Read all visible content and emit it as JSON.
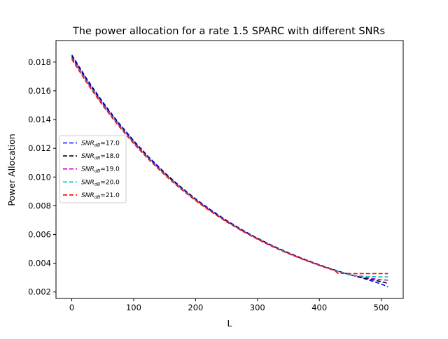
{
  "chart_data": {
    "type": "line",
    "title": "The power allocation for a rate 1.5 SPARC with different SNRs",
    "xlabel": "L",
    "ylabel": "Power Allocation",
    "xlim": [
      -25.5,
      535.5
    ],
    "ylim": [
      0.00155,
      0.0195
    ],
    "x_ticks": [
      0,
      100,
      200,
      300,
      400,
      500
    ],
    "x_tick_labels": [
      "0",
      "100",
      "200",
      "300",
      "400",
      "500"
    ],
    "y_ticks": [
      0.002,
      0.004,
      0.006,
      0.008,
      0.01,
      0.012,
      0.014,
      0.016,
      0.018
    ],
    "y_tick_labels": [
      "0.002",
      "0.004",
      "0.006",
      "0.008",
      "0.010",
      "0.012",
      "0.014",
      "0.016",
      "0.018"
    ],
    "grid": false,
    "legend_position": "center-left",
    "line_style": "dashed",
    "x": [
      0,
      25,
      50,
      75,
      100,
      125,
      150,
      175,
      200,
      225,
      250,
      275,
      300,
      325,
      350,
      375,
      400,
      425,
      430,
      450,
      475,
      500,
      511
    ],
    "series": [
      {
        "name": "SNR_dB=17.0",
        "legend_prefix": "SNR",
        "legend_sub": "dB",
        "legend_value": "=17.0",
        "color": "#0000ff",
        "values": [
          0.0185,
          0.01678,
          0.01522,
          0.01381,
          0.01253,
          0.01136,
          0.01031,
          0.00935,
          0.00848,
          0.0077,
          0.00698,
          0.00633,
          0.00574,
          0.00521,
          0.00473,
          0.00429,
          0.00389,
          0.00353,
          0.00346,
          0.0032,
          0.0029,
          0.00256,
          0.00235
        ]
      },
      {
        "name": "SNR_dB=18.0",
        "legend_prefix": "SNR",
        "legend_sub": "dB",
        "legend_value": "=18.0",
        "color": "#000000",
        "values": [
          0.0184,
          0.01669,
          0.01514,
          0.01374,
          0.01246,
          0.0113,
          0.01025,
          0.0093,
          0.00844,
          0.00766,
          0.00695,
          0.0063,
          0.00572,
          0.00519,
          0.00471,
          0.00427,
          0.00388,
          0.00352,
          0.00345,
          0.0032,
          0.00295,
          0.00272,
          0.0026
        ]
      },
      {
        "name": "SNR_dB=19.0",
        "legend_prefix": "SNR",
        "legend_sub": "dB",
        "legend_value": "=19.0",
        "color": "#bf00bf",
        "values": [
          0.01832,
          0.01662,
          0.01508,
          0.01368,
          0.01241,
          0.01126,
          0.01021,
          0.00927,
          0.00841,
          0.00763,
          0.00692,
          0.00628,
          0.0057,
          0.00517,
          0.00469,
          0.00426,
          0.00386,
          0.00351,
          0.00344,
          0.00319,
          0.003,
          0.00285,
          0.00282
        ]
      },
      {
        "name": "SNR_dB=20.0",
        "legend_prefix": "SNR",
        "legend_sub": "dB",
        "legend_value": "=20.0",
        "color": "#00bfbf",
        "values": [
          0.01826,
          0.01656,
          0.01502,
          0.01363,
          0.01237,
          0.01122,
          0.01018,
          0.00924,
          0.00838,
          0.00761,
          0.0069,
          0.00626,
          0.00568,
          0.00516,
          0.00468,
          0.00425,
          0.00385,
          0.0035,
          0.00343,
          0.00318,
          0.00308,
          0.00305,
          0.00305
        ]
      },
      {
        "name": "SNR_dB=21.0",
        "legend_prefix": "SNR",
        "legend_sub": "dB",
        "legend_value": "=21.0",
        "color": "#ff0000",
        "values": [
          0.0182,
          0.01651,
          0.01498,
          0.01359,
          0.01233,
          0.01119,
          0.01015,
          0.00921,
          0.00836,
          0.00759,
          0.00688,
          0.00625,
          0.00567,
          0.00514,
          0.00467,
          0.00424,
          0.00384,
          0.00349,
          0.0033,
          0.00328,
          0.00328,
          0.00328,
          0.00328
        ]
      }
    ]
  }
}
